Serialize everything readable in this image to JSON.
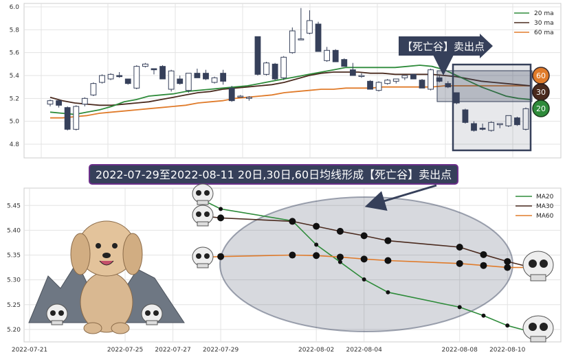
{
  "chart_data": [
    {
      "type": "candlestick",
      "legend": [
        "20 ma",
        "30 ma",
        "60 ma"
      ],
      "colors": {
        "ma20": "#2e8b3a",
        "ma30": "#4a2a1e",
        "ma60": "#e07b2a",
        "down": "#36405a",
        "up": "#ffffff"
      },
      "ylim": [
        4.68,
        6.03
      ],
      "yticks": [
        "4.8",
        "5.0",
        "5.2",
        "5.4",
        "5.6",
        "5.8",
        "6.0"
      ],
      "candles": [
        {
          "o": 5.15,
          "h": 5.19,
          "l": 5.13,
          "c": 5.18
        },
        {
          "o": 5.18,
          "h": 5.19,
          "l": 5.12,
          "c": 5.14
        },
        {
          "o": 5.12,
          "h": 5.13,
          "l": 4.92,
          "c": 4.93
        },
        {
          "o": 4.93,
          "h": 5.14,
          "l": 4.92,
          "c": 5.13
        },
        {
          "o": 5.15,
          "h": 5.21,
          "l": 5.13,
          "c": 5.2
        },
        {
          "o": 5.23,
          "h": 5.34,
          "l": 5.22,
          "c": 5.33
        },
        {
          "o": 5.34,
          "h": 5.41,
          "l": 5.33,
          "c": 5.4
        },
        {
          "o": 5.37,
          "h": 5.42,
          "l": 5.36,
          "c": 5.41
        },
        {
          "o": 5.4,
          "h": 5.43,
          "l": 5.38,
          "c": 5.39
        },
        {
          "o": 5.37,
          "h": 5.37,
          "l": 5.32,
          "c": 5.33
        },
        {
          "o": 5.29,
          "h": 5.49,
          "l": 5.28,
          "c": 5.48
        },
        {
          "o": 5.48,
          "h": 5.51,
          "l": 5.47,
          "c": 5.5
        },
        {
          "o": 5.46,
          "h": 5.46,
          "l": 5.41,
          "c": 5.45
        },
        {
          "o": 5.48,
          "h": 5.49,
          "l": 5.37,
          "c": 5.37
        },
        {
          "o": 5.28,
          "h": 5.45,
          "l": 5.26,
          "c": 5.44
        },
        {
          "o": 5.37,
          "h": 5.4,
          "l": 5.32,
          "c": 5.33
        },
        {
          "o": 5.27,
          "h": 5.42,
          "l": 5.25,
          "c": 5.42
        },
        {
          "o": 5.42,
          "h": 5.46,
          "l": 5.38,
          "c": 5.38
        },
        {
          "o": 5.42,
          "h": 5.45,
          "l": 5.36,
          "c": 5.37
        },
        {
          "o": 5.34,
          "h": 5.39,
          "l": 5.33,
          "c": 5.38
        },
        {
          "o": 5.42,
          "h": 5.45,
          "l": 5.32,
          "c": 5.35
        },
        {
          "o": 5.29,
          "h": 5.31,
          "l": 5.17,
          "c": 5.18
        },
        {
          "o": 5.22,
          "h": 5.23,
          "l": 5.21,
          "c": 5.22
        },
        {
          "o": 5.2,
          "h": 5.22,
          "l": 5.18,
          "c": 5.21
        },
        {
          "o": 5.74,
          "h": 5.74,
          "l": 5.4,
          "c": 5.41
        },
        {
          "o": 5.41,
          "h": 5.52,
          "l": 5.4,
          "c": 5.51
        },
        {
          "o": 5.5,
          "h": 5.51,
          "l": 5.36,
          "c": 5.37
        },
        {
          "o": 5.38,
          "h": 5.57,
          "l": 5.36,
          "c": 5.56
        },
        {
          "o": 5.6,
          "h": 5.82,
          "l": 5.59,
          "c": 5.79
        },
        {
          "o": 5.72,
          "h": 5.99,
          "l": 5.71,
          "c": 5.72
        },
        {
          "o": 5.77,
          "h": 5.97,
          "l": 5.76,
          "c": 5.88
        },
        {
          "o": 5.85,
          "h": 5.87,
          "l": 5.61,
          "c": 5.61
        },
        {
          "o": 5.53,
          "h": 5.65,
          "l": 5.52,
          "c": 5.62
        },
        {
          "o": 5.62,
          "h": 5.63,
          "l": 5.52,
          "c": 5.52
        },
        {
          "o": 5.54,
          "h": 5.55,
          "l": 5.48,
          "c": 5.48
        },
        {
          "o": 5.45,
          "h": 5.51,
          "l": 5.4,
          "c": 5.4
        },
        {
          "o": 5.4,
          "h": 5.42,
          "l": 5.38,
          "c": 5.4
        },
        {
          "o": 5.35,
          "h": 5.36,
          "l": 5.28,
          "c": 5.28
        },
        {
          "o": 5.27,
          "h": 5.35,
          "l": 5.26,
          "c": 5.34
        },
        {
          "o": 5.33,
          "h": 5.37,
          "l": 5.32,
          "c": 5.36
        },
        {
          "o": 5.35,
          "h": 5.37,
          "l": 5.33,
          "c": 5.37
        },
        {
          "o": 5.38,
          "h": 5.4,
          "l": 5.36,
          "c": 5.4
        },
        {
          "o": 5.41,
          "h": 5.41,
          "l": 5.37,
          "c": 5.37
        },
        {
          "o": 5.36,
          "h": 5.37,
          "l": 5.29,
          "c": 5.29
        },
        {
          "o": 5.28,
          "h": 5.46,
          "l": 5.27,
          "c": 5.45
        },
        {
          "o": 5.38,
          "h": 5.4,
          "l": 5.34,
          "c": 5.35
        },
        {
          "o": 5.33,
          "h": 5.35,
          "l": 5.29,
          "c": 5.3
        },
        {
          "o": 5.25,
          "h": 5.25,
          "l": 5.15,
          "c": 5.16
        },
        {
          "o": 5.1,
          "h": 5.11,
          "l": 4.98,
          "c": 4.99
        },
        {
          "o": 4.98,
          "h": 5.0,
          "l": 4.91,
          "c": 4.92
        },
        {
          "o": 4.94,
          "h": 4.98,
          "l": 4.92,
          "c": 4.93
        },
        {
          "o": 4.92,
          "h": 5.0,
          "l": 4.91,
          "c": 4.99
        },
        {
          "o": 4.97,
          "h": 4.98,
          "l": 4.94,
          "c": 4.98
        },
        {
          "o": 4.96,
          "h": 5.05,
          "l": 4.95,
          "c": 5.05
        },
        {
          "o": 5.03,
          "h": 5.04,
          "l": 4.96,
          "c": 4.97
        },
        {
          "o": 4.93,
          "h": 5.12,
          "l": 4.92,
          "c": 5.11
        }
      ],
      "ma20": [
        5.08,
        5.07,
        5.06,
        5.08,
        5.1,
        5.13,
        5.17,
        5.19,
        5.22,
        5.23,
        5.24,
        5.26,
        5.27,
        5.28,
        5.29,
        5.3,
        5.31,
        5.33,
        5.35,
        5.37,
        5.39,
        5.41,
        5.43,
        5.45,
        5.47,
        5.47,
        5.47,
        5.47,
        5.47,
        5.48,
        5.49,
        5.48,
        5.45,
        5.4,
        5.35,
        5.3,
        5.26,
        5.22,
        5.2,
        5.19
      ],
      "ma30": [
        5.21,
        5.18,
        5.16,
        5.15,
        5.14,
        5.14,
        5.15,
        5.16,
        5.17,
        5.19,
        5.21,
        5.23,
        5.25,
        5.26,
        5.28,
        5.29,
        5.3,
        5.31,
        5.32,
        5.34,
        5.37,
        5.4,
        5.42,
        5.43,
        5.43,
        5.43,
        5.42,
        5.42,
        5.41,
        5.41,
        5.41,
        5.41,
        5.4,
        5.39,
        5.37,
        5.35,
        5.34,
        5.33,
        5.32,
        5.31
      ],
      "ma60": [
        5.03,
        5.03,
        5.04,
        5.05,
        5.07,
        5.08,
        5.09,
        5.1,
        5.11,
        5.12,
        5.13,
        5.14,
        5.16,
        5.17,
        5.18,
        5.2,
        5.21,
        5.22,
        5.23,
        5.25,
        5.26,
        5.27,
        5.28,
        5.28,
        5.29,
        5.29,
        5.29,
        5.3,
        5.3,
        5.3,
        5.3,
        5.3,
        5.31,
        5.31,
        5.31,
        5.31,
        5.31,
        5.31,
        5.31,
        5.31
      ],
      "badges": [
        "60",
        "30",
        "20"
      ],
      "callout": "【死亡谷】卖出点"
    },
    {
      "type": "line",
      "legend": [
        "MA20",
        "MA30",
        "MA60"
      ],
      "ylim": [
        5.175,
        5.485
      ],
      "yticks": [
        "5.20",
        "5.25",
        "5.30",
        "5.35",
        "5.40",
        "5.45"
      ],
      "xlim": [
        "2022-07-21",
        "2022-08-11"
      ],
      "xticks": [
        "2022-07-21",
        "2022-07-25",
        "2022-07-27",
        "2022-07-29",
        "2022-08-02",
        "2022-08-04",
        "2022-08-08",
        "2022-08-10"
      ],
      "x": [
        "2022-07-28",
        "2022-07-29",
        "2022-08-01",
        "2022-08-02",
        "2022-08-03",
        "2022-08-04",
        "2022-08-05",
        "2022-08-08",
        "2022-08-09",
        "2022-08-10",
        "2022-08-11"
      ],
      "series": [
        {
          "name": "MA20",
          "values": [
            5.467,
            5.443,
            5.419,
            5.371,
            5.336,
            5.301,
            5.275,
            5.245,
            5.228,
            5.208,
            5.195
          ]
        },
        {
          "name": "MA30",
          "values": [
            5.43,
            5.425,
            5.418,
            5.408,
            5.398,
            5.389,
            5.379,
            5.366,
            5.351,
            5.337,
            5.325
          ]
        },
        {
          "name": "MA60",
          "values": [
            5.345,
            5.347,
            5.35,
            5.349,
            5.346,
            5.342,
            5.339,
            5.333,
            5.329,
            5.325,
            5.325
          ]
        }
      ],
      "marked_points": {
        "MA20": [
          1,
          2,
          3,
          4,
          5,
          6,
          7,
          8,
          9
        ],
        "MA30": [
          1,
          2,
          3,
          4,
          5,
          6,
          7,
          8,
          9
        ],
        "MA60": [
          1,
          2,
          3,
          4,
          5,
          6,
          7,
          8,
          9
        ]
      }
    }
  ],
  "banner": "2022-07-29至2022-08-11 20日,30日,60日均线形成【死亡谷】卖出点"
}
